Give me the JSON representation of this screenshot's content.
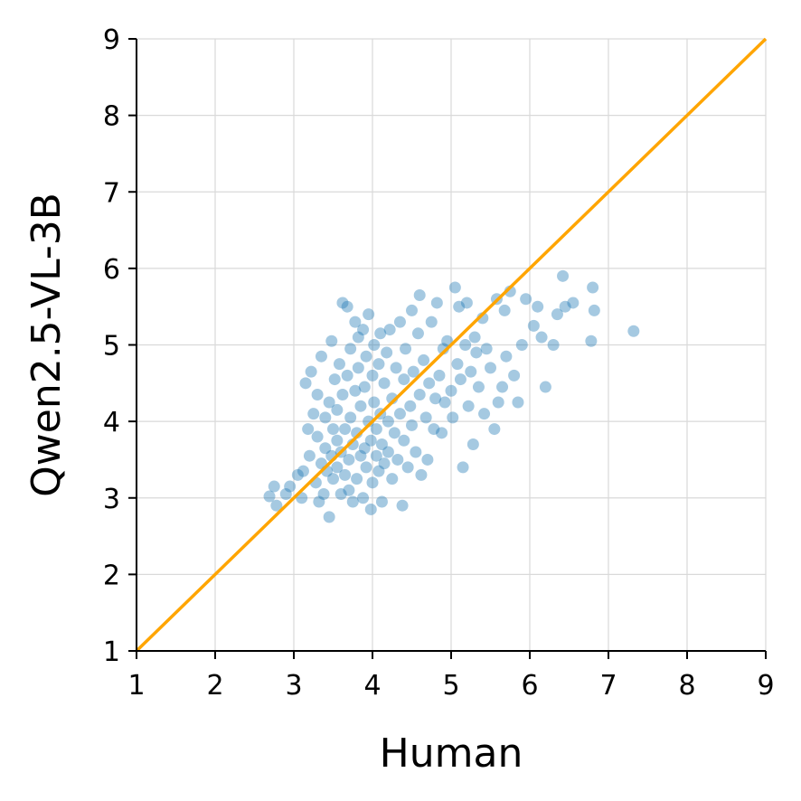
{
  "chart_data": {
    "type": "scatter",
    "xlabel": "Human",
    "ylabel": "Qwen2.5-VL-3B",
    "xlim": [
      1,
      9
    ],
    "ylim": [
      1,
      9
    ],
    "xticks": [
      1,
      2,
      3,
      4,
      5,
      6,
      7,
      8,
      9
    ],
    "yticks": [
      1,
      2,
      3,
      4,
      5,
      6,
      7,
      8,
      9
    ],
    "grid": true,
    "reference_line": {
      "x": [
        1,
        9
      ],
      "y": [
        1,
        9
      ],
      "color": "#ffa500"
    },
    "point_color": "#1f77b4",
    "point_alpha": 0.4,
    "points": [
      [
        2.69,
        3.02
      ],
      [
        2.75,
        3.15
      ],
      [
        2.78,
        2.9
      ],
      [
        2.9,
        3.05
      ],
      [
        2.95,
        3.15
      ],
      [
        3.05,
        3.3
      ],
      [
        3.1,
        3.0
      ],
      [
        3.12,
        3.35
      ],
      [
        3.15,
        4.5
      ],
      [
        3.18,
        3.9
      ],
      [
        3.2,
        3.55
      ],
      [
        3.22,
        4.65
      ],
      [
        3.25,
        4.1
      ],
      [
        3.28,
        3.2
      ],
      [
        3.3,
        3.8
      ],
      [
        3.3,
        4.35
      ],
      [
        3.32,
        2.95
      ],
      [
        3.35,
        4.85
      ],
      [
        3.35,
        3.45
      ],
      [
        3.38,
        3.05
      ],
      [
        3.4,
        3.65
      ],
      [
        3.4,
        4.05
      ],
      [
        3.42,
        3.35
      ],
      [
        3.45,
        2.75
      ],
      [
        3.45,
        4.25
      ],
      [
        3.48,
        3.55
      ],
      [
        3.48,
        5.05
      ],
      [
        3.5,
        3.9
      ],
      [
        3.5,
        3.25
      ],
      [
        3.52,
        4.55
      ],
      [
        3.55,
        3.75
      ],
      [
        3.55,
        3.4
      ],
      [
        3.55,
        4.15
      ],
      [
        3.58,
        4.75
      ],
      [
        3.6,
        3.6
      ],
      [
        3.6,
        3.05
      ],
      [
        3.62,
        5.55
      ],
      [
        3.62,
        4.35
      ],
      [
        3.65,
        3.3
      ],
      [
        3.65,
        3.9
      ],
      [
        3.68,
        5.5
      ],
      [
        3.68,
        4.6
      ],
      [
        3.7,
        3.5
      ],
      [
        3.7,
        3.1
      ],
      [
        3.72,
        4.05
      ],
      [
        3.72,
        4.95
      ],
      [
        3.75,
        3.7
      ],
      [
        3.75,
        2.95
      ],
      [
        3.78,
        5.3
      ],
      [
        3.78,
        4.4
      ],
      [
        3.8,
        3.25
      ],
      [
        3.8,
        3.85
      ],
      [
        3.82,
        4.7
      ],
      [
        3.82,
        5.1
      ],
      [
        3.85,
        3.55
      ],
      [
        3.85,
        4.2
      ],
      [
        3.88,
        3.0
      ],
      [
        3.88,
        5.2
      ],
      [
        3.9,
        3.65
      ],
      [
        3.9,
        4.45
      ],
      [
        3.92,
        4.85
      ],
      [
        3.92,
        3.4
      ],
      [
        3.95,
        4.0
      ],
      [
        3.95,
        5.4
      ],
      [
        3.98,
        3.75
      ],
      [
        3.98,
        2.85
      ],
      [
        4.0,
        4.6
      ],
      [
        4.0,
        3.2
      ],
      [
        4.02,
        4.25
      ],
      [
        4.02,
        5.0
      ],
      [
        4.05,
        3.55
      ],
      [
        4.05,
        3.9
      ],
      [
        4.08,
        4.75
      ],
      [
        4.08,
        3.35
      ],
      [
        4.1,
        4.1
      ],
      [
        4.1,
        5.15
      ],
      [
        4.12,
        3.7
      ],
      [
        4.12,
        2.95
      ],
      [
        4.15,
        4.5
      ],
      [
        4.15,
        3.45
      ],
      [
        4.18,
        4.9
      ],
      [
        4.2,
        4.0
      ],
      [
        4.2,
        3.6
      ],
      [
        4.22,
        5.2
      ],
      [
        4.25,
        4.3
      ],
      [
        4.25,
        3.25
      ],
      [
        4.28,
        3.85
      ],
      [
        4.3,
        4.7
      ],
      [
        4.32,
        3.5
      ],
      [
        4.35,
        5.3
      ],
      [
        4.35,
        4.1
      ],
      [
        4.38,
        2.9
      ],
      [
        4.4,
        3.75
      ],
      [
        4.4,
        4.55
      ],
      [
        4.42,
        4.95
      ],
      [
        4.45,
        3.4
      ],
      [
        4.48,
        4.2
      ],
      [
        4.5,
        5.45
      ],
      [
        4.5,
        3.95
      ],
      [
        4.52,
        4.65
      ],
      [
        4.55,
        3.6
      ],
      [
        4.58,
        5.15
      ],
      [
        4.6,
        4.35
      ],
      [
        4.6,
        5.65
      ],
      [
        4.62,
        3.3
      ],
      [
        4.65,
        4.8
      ],
      [
        4.68,
        4.05
      ],
      [
        4.7,
        3.5
      ],
      [
        4.72,
        4.5
      ],
      [
        4.75,
        5.3
      ],
      [
        4.78,
        3.9
      ],
      [
        4.8,
        4.3
      ],
      [
        4.82,
        5.55
      ],
      [
        4.85,
        4.6
      ],
      [
        4.88,
        3.85
      ],
      [
        4.9,
        4.95
      ],
      [
        4.92,
        4.25
      ],
      [
        4.95,
        5.05
      ],
      [
        5.0,
        4.4
      ],
      [
        5.02,
        4.05
      ],
      [
        5.05,
        5.75
      ],
      [
        5.08,
        4.75
      ],
      [
        5.1,
        5.5
      ],
      [
        5.12,
        4.55
      ],
      [
        5.15,
        3.4
      ],
      [
        5.18,
        5.0
      ],
      [
        5.2,
        5.55
      ],
      [
        5.22,
        4.2
      ],
      [
        5.25,
        4.65
      ],
      [
        5.28,
        3.7
      ],
      [
        5.3,
        5.1
      ],
      [
        5.32,
        4.9
      ],
      [
        5.35,
        4.45
      ],
      [
        5.4,
        5.35
      ],
      [
        5.42,
        4.1
      ],
      [
        5.45,
        4.95
      ],
      [
        5.5,
        4.7
      ],
      [
        5.55,
        3.9
      ],
      [
        5.58,
        5.6
      ],
      [
        5.6,
        4.25
      ],
      [
        5.65,
        4.45
      ],
      [
        5.68,
        5.45
      ],
      [
        5.7,
        4.85
      ],
      [
        5.75,
        5.7
      ],
      [
        5.8,
        4.6
      ],
      [
        5.85,
        4.25
      ],
      [
        5.9,
        5.0
      ],
      [
        5.95,
        5.6
      ],
      [
        6.05,
        5.25
      ],
      [
        6.1,
        5.5
      ],
      [
        6.15,
        5.1
      ],
      [
        6.2,
        4.45
      ],
      [
        6.3,
        5.0
      ],
      [
        6.35,
        5.4
      ],
      [
        6.42,
        5.9
      ],
      [
        6.45,
        5.5
      ],
      [
        6.55,
        5.55
      ],
      [
        6.78,
        5.05
      ],
      [
        6.8,
        5.75
      ],
      [
        6.82,
        5.45
      ],
      [
        7.32,
        5.18
      ]
    ]
  }
}
